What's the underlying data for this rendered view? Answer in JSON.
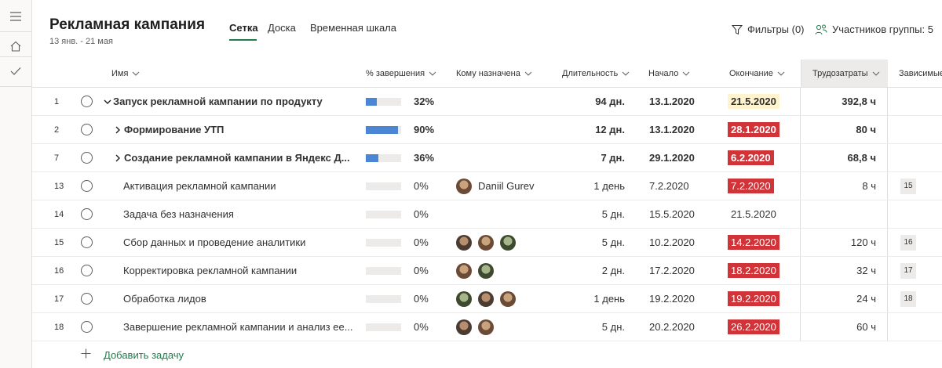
{
  "rail": {
    "icons": [
      "hamburger-icon",
      "home-icon",
      "check-icon"
    ]
  },
  "header": {
    "title": "Рекламная кампания",
    "dates": "13 янв. - 21 мая",
    "tabs": [
      {
        "label": "Сетка",
        "active": true
      },
      {
        "label": "Доска",
        "active": false
      },
      {
        "label": "Временная шкала",
        "active": false
      }
    ],
    "filters_label": "Фильтры (0)",
    "members_label": "Участников группы: 5"
  },
  "columns": {
    "name": "Имя",
    "completion": "% завершения",
    "assigned": "Кому назначена",
    "duration": "Длительность",
    "start": "Начало",
    "finish": "Окончание",
    "effort": "Трудозатраты",
    "dependencies": "Зависимые"
  },
  "colors": {
    "accent": "#237b4b",
    "progress": "#4a86d4",
    "late": "#d13438",
    "due": "#fff4ce"
  },
  "tasks": [
    {
      "id": "1",
      "name": "Запуск рекламной кампании по продукту",
      "level": 0,
      "expander": "down",
      "bold": true,
      "progress": 32,
      "progress_label": "32%",
      "assigned_name": "",
      "avatars": 0,
      "duration": "94 дн.",
      "start": "13.1.2020",
      "finish": "21.5.2020",
      "finish_style": "yellow",
      "effort": "392,8 ч",
      "dep": ""
    },
    {
      "id": "2",
      "name": "Формирование УТП",
      "level": 1,
      "expander": "right",
      "bold": true,
      "progress": 90,
      "progress_label": "90%",
      "assigned_name": "",
      "avatars": 0,
      "duration": "12 дн.",
      "start": "13.1.2020",
      "finish": "28.1.2020",
      "finish_style": "red",
      "effort": "80 ч",
      "dep": ""
    },
    {
      "id": "7",
      "name": "Создание рекламной кампании в Яндекс Д...",
      "level": 1,
      "expander": "right",
      "bold": true,
      "progress": 36,
      "progress_label": "36%",
      "assigned_name": "",
      "avatars": 0,
      "duration": "7 дн.",
      "start": "29.1.2020",
      "finish": "6.2.2020",
      "finish_style": "red",
      "effort": "68,8 ч",
      "dep": ""
    },
    {
      "id": "13",
      "name": "Активация рекламной кампании",
      "level": 2,
      "expander": "",
      "bold": false,
      "progress": 0,
      "progress_label": "0%",
      "assigned_name": "Daniil Gurev",
      "avatars": 1,
      "duration": "1 день",
      "start": "7.2.2020",
      "finish": "7.2.2020",
      "finish_style": "red",
      "effort": "8 ч",
      "dep": "15"
    },
    {
      "id": "14",
      "name": "Задача без назначения",
      "level": 2,
      "expander": "",
      "bold": false,
      "progress": 0,
      "progress_label": "0%",
      "assigned_name": "",
      "avatars": 0,
      "duration": "5 дн.",
      "start": "15.5.2020",
      "finish": "21.5.2020",
      "finish_style": "plain",
      "effort": "",
      "dep": ""
    },
    {
      "id": "15",
      "name": "Сбор данных и проведение аналитики",
      "level": 2,
      "expander": "",
      "bold": false,
      "progress": 0,
      "progress_label": "0%",
      "assigned_name": "",
      "avatars": 3,
      "duration": "5 дн.",
      "start": "10.2.2020",
      "finish": "14.2.2020",
      "finish_style": "red",
      "effort": "120 ч",
      "dep": "16"
    },
    {
      "id": "16",
      "name": "Корректировка рекламной кампании",
      "level": 2,
      "expander": "",
      "bold": false,
      "progress": 0,
      "progress_label": "0%",
      "assigned_name": "",
      "avatars": 2,
      "duration": "2 дн.",
      "start": "17.2.2020",
      "finish": "18.2.2020",
      "finish_style": "red",
      "effort": "32 ч",
      "dep": "17"
    },
    {
      "id": "17",
      "name": "Обработка лидов",
      "level": 2,
      "expander": "",
      "bold": false,
      "progress": 0,
      "progress_label": "0%",
      "assigned_name": "",
      "avatars": 3,
      "duration": "1 день",
      "start": "19.2.2020",
      "finish": "19.2.2020",
      "finish_style": "red",
      "effort": "24 ч",
      "dep": "18"
    },
    {
      "id": "18",
      "name": "Завершение рекламной кампании и анализ ее...",
      "level": 2,
      "expander": "",
      "bold": false,
      "progress": 0,
      "progress_label": "0%",
      "assigned_name": "",
      "avatars": 2,
      "duration": "5 дн.",
      "start": "20.2.2020",
      "finish": "26.2.2020",
      "finish_style": "red",
      "effort": "60 ч",
      "dep": ""
    }
  ],
  "add_task_label": "Добавить задачу"
}
